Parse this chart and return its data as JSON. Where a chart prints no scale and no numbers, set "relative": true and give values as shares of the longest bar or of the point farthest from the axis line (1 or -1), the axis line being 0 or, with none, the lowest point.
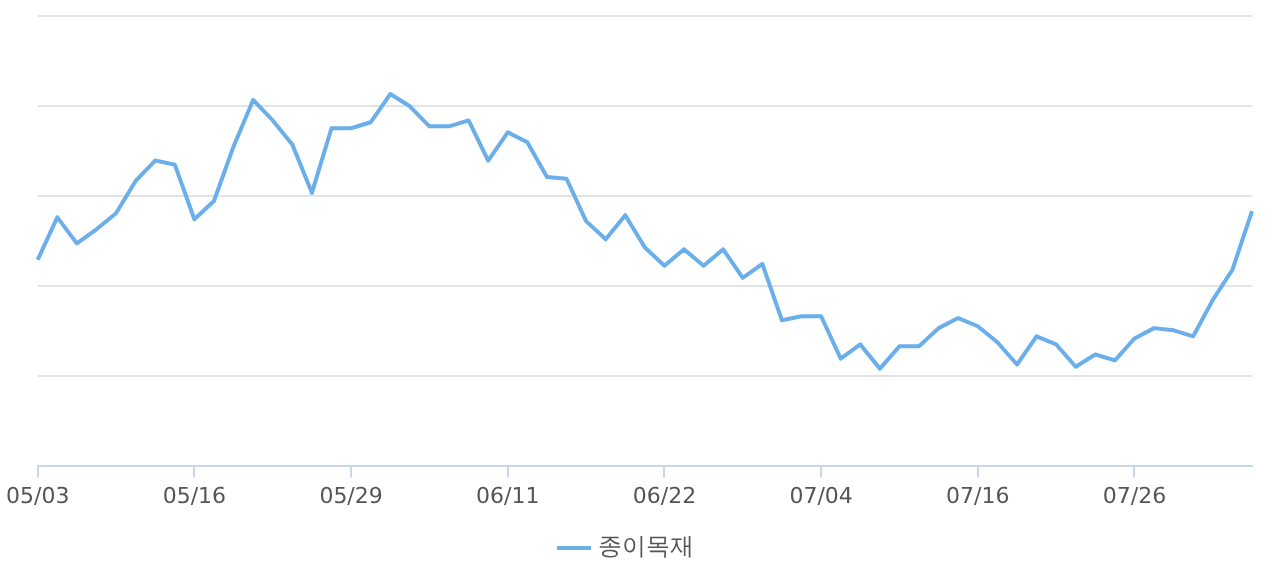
{
  "chart_data": {
    "type": "line",
    "relative": true,
    "categories": [
      "05/03",
      null,
      null,
      null,
      null,
      null,
      null,
      null,
      "05/16",
      null,
      null,
      null,
      null,
      null,
      null,
      null,
      "05/29",
      null,
      null,
      null,
      null,
      null,
      null,
      null,
      "06/11",
      null,
      null,
      null,
      null,
      null,
      null,
      null,
      "06/22",
      null,
      null,
      null,
      null,
      null,
      null,
      null,
      "07/04",
      null,
      null,
      null,
      null,
      null,
      null,
      null,
      "07/16",
      null,
      null,
      null,
      null,
      null,
      null,
      null,
      "07/26",
      null,
      null,
      null,
      null,
      null,
      null
    ],
    "series": [
      {
        "name": "종이목재",
        "color": "#6aaeea",
        "values": [
          0.554,
          0.668,
          0.598,
          0.636,
          0.679,
          0.766,
          0.821,
          0.81,
          0.663,
          0.712,
          0.859,
          0.984,
          0.929,
          0.864,
          0.734,
          0.908,
          0.908,
          0.924,
          1,
          0.967,
          0.913,
          0.913,
          0.929,
          0.821,
          0.897,
          0.87,
          0.777,
          0.772,
          0.658,
          0.609,
          0.674,
          0.587,
          0.538,
          0.582,
          0.538,
          0.582,
          0.505,
          0.543,
          0.391,
          0.402,
          0.402,
          0.288,
          0.326,
          0.261,
          0.321,
          0.321,
          0.37,
          0.397,
          0.375,
          0.332,
          0.272,
          0.348,
          0.326,
          0.266,
          0.299,
          0.283,
          0.342,
          0.37,
          0.364,
          0.348,
          0.446,
          0.527,
          0.685
        ]
      }
    ],
    "grid": "y",
    "legend": "bottom",
    "marker": "none",
    "line_style": "solid"
  }
}
